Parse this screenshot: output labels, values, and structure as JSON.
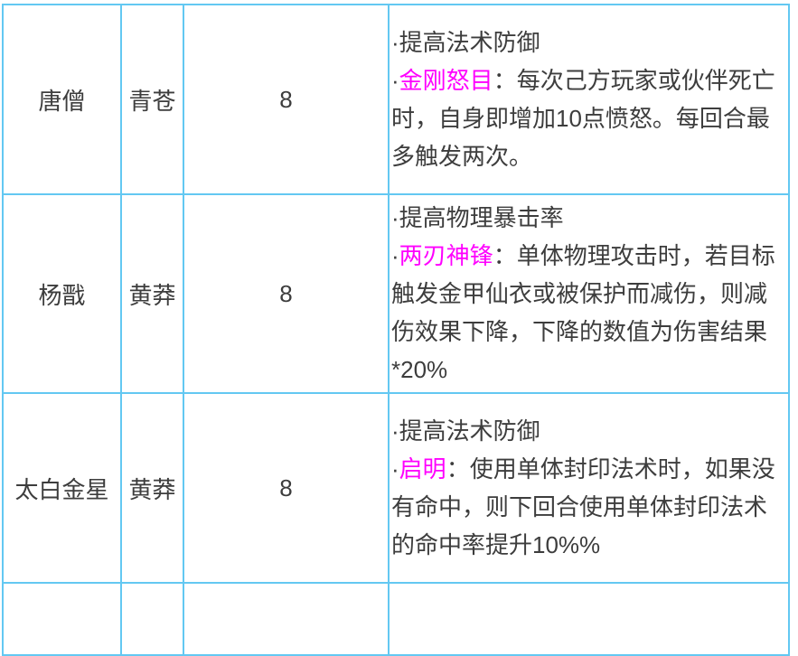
{
  "colors": {
    "border": "#63c8f2",
    "text": "#3d3d3d",
    "highlight": "#ff00ff",
    "background": "#ffffff"
  },
  "table": {
    "rows": [
      {
        "character": "唐僧",
        "partner": "青苍",
        "value": "8",
        "effect_runs": [
          {
            "t": "·提高法术防御\n·"
          },
          {
            "t": "金刚怒目",
            "c": "highlight"
          },
          {
            "t": "：每次己方玩家或伙伴死亡时，自身即增加10点愤怒。每回合最多触发两次。"
          }
        ]
      },
      {
        "character": "杨戬",
        "partner": "黄莽",
        "value": "8",
        "effect_runs": [
          {
            "t": "·提高物理暴击率\n·"
          },
          {
            "t": "两刃神锋",
            "c": "highlight"
          },
          {
            "t": "：单体物理攻击时，若目标触发金甲仙衣或被保护而减伤，则减伤效果下降，下降的数值为伤害结果*20%"
          }
        ]
      },
      {
        "character": "太白金星",
        "partner": "黄莽",
        "value": "8",
        "effect_runs": [
          {
            "t": "·提高法术防御\n·"
          },
          {
            "t": "启明",
            "c": "highlight"
          },
          {
            "t": "：使用单体封印法术时，如果没有命中，则下回合使用单体封印法术的命中率提升10%%"
          }
        ]
      }
    ]
  }
}
